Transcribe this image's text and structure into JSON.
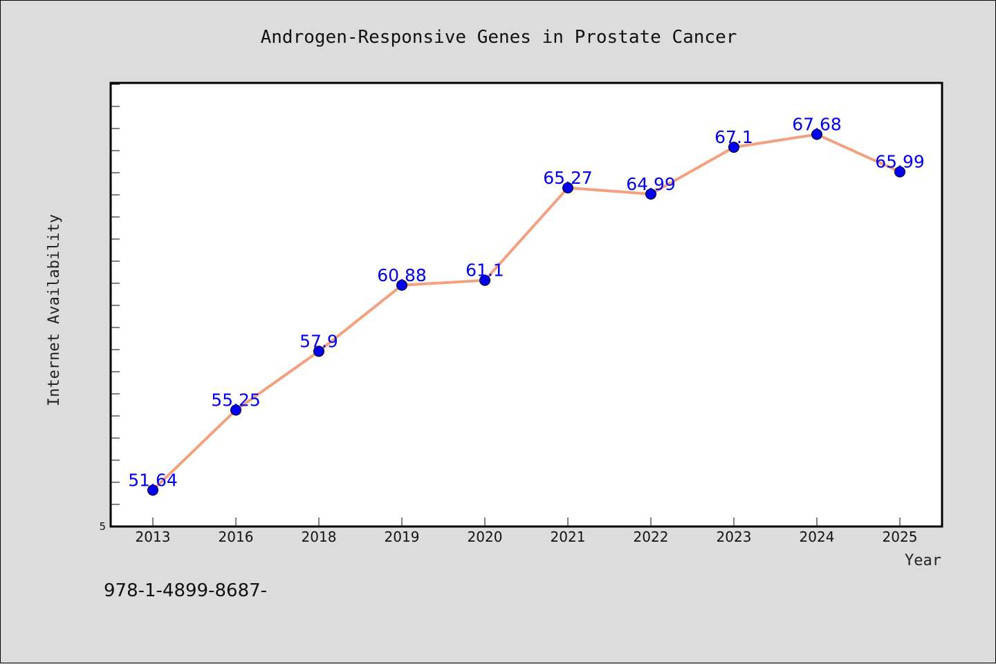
{
  "chart_data": {
    "type": "line",
    "title": "Androgen-Responsive Genes in Prostate Cancer",
    "xlabel": "Year",
    "ylabel": "Internet Availability",
    "categories": [
      "2013",
      "2016",
      "2018",
      "2019",
      "2020",
      "2021",
      "2022",
      "2023",
      "2024",
      "2025"
    ],
    "series": [
      {
        "values": [
          51.64,
          55.25,
          57.9,
          60.88,
          61.1,
          65.27,
          64.99,
          67.1,
          67.68,
          65.99
        ],
        "data_labels": [
          "51.64",
          "55.25",
          "57.9",
          "60.88",
          "61.1",
          "65.27",
          "64.99",
          "67.1",
          "67.68",
          "65.99"
        ],
        "line_color": "#f4a07f",
        "marker_color": "#0000ee"
      }
    ],
    "ylim": [
      50.0,
      70.0
    ],
    "y_tick_labels": [
      "5"
    ],
    "grid": false,
    "legend": "none"
  },
  "footer": {
    "text": "978-1-4899-8687-"
  },
  "colors": {
    "background": "#dcdcdc",
    "plot_background": "#ffffff",
    "line": "#f4a07f",
    "marker": "#0000ee",
    "data_label": "#0000ee"
  }
}
